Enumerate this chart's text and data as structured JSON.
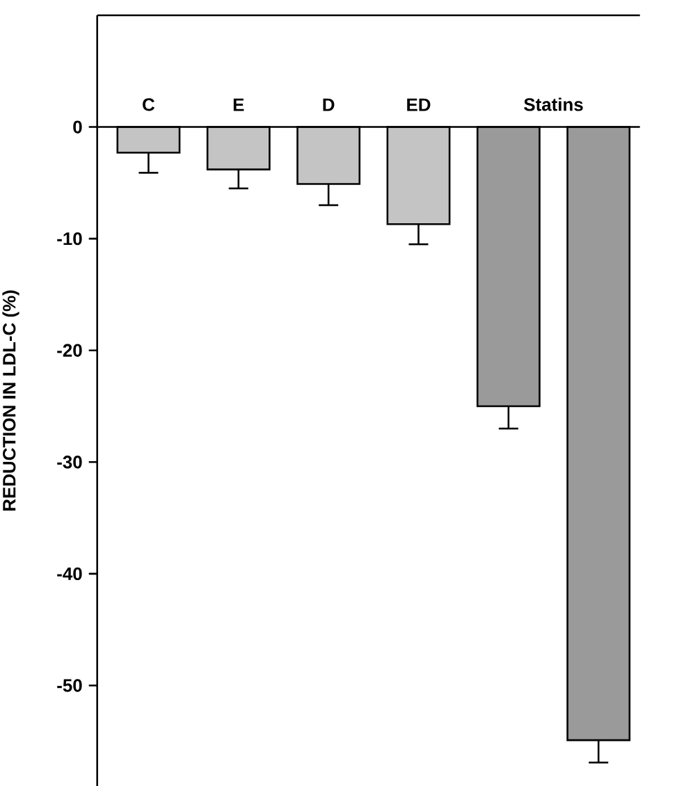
{
  "chart_data": {
    "type": "bar",
    "ylabel": "REDUCTION IN LDL-C (%)",
    "categories": [
      "C",
      "E",
      "D",
      "ED",
      null,
      null
    ],
    "values": [
      -2.3,
      -3.8,
      -5.1,
      -8.7,
      -25.0,
      -54.9
    ],
    "errors": [
      [
        -4.1,
        -2.3
      ],
      [
        -5.5,
        -3.8
      ],
      [
        -7.0,
        -5.1
      ],
      [
        -10.5,
        -8.7
      ],
      [
        -27.0,
        -25.0
      ],
      [
        -56.9,
        -54.9
      ]
    ],
    "colors": [
      "#c4c4c4",
      "#c4c4c4",
      "#c4c4c4",
      "#c4c4c4",
      "#9a9a9a",
      "#9a9a9a"
    ],
    "ylim": [
      -59,
      10
    ],
    "yticks": [
      0,
      -10,
      -20,
      -30,
      -40,
      -50
    ],
    "annotations": [
      "Statins"
    ],
    "grid": false
  }
}
